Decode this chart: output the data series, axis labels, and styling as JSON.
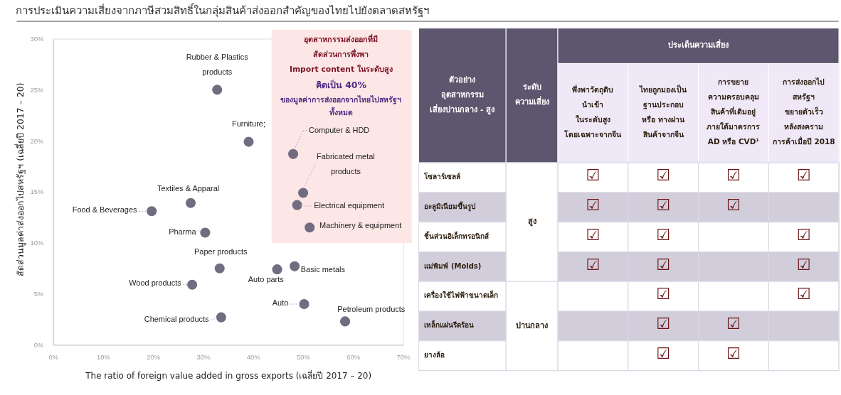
{
  "chart_data": [
    {
      "type": "scatter",
      "title": "การประเมินความเสี่ยงจากภาษีสวมสิทธิ์ในกลุ่มสินค้าส่งออกสำคัญของไทยไปยังตลาดสหรัฐฯ",
      "xlabel": "The ratio of foreign value added in gross exports (เฉลี่ยปี 2017 – 20)",
      "ylabel": "สัดส่วนมูลค่าส่งออกไปสหรัฐฯ (เฉลี่ยปี 2017 – 20)",
      "marker": "circle",
      "xlim": [
        0,
        70
      ],
      "ylim": [
        0,
        30
      ],
      "xticks": [
        {
          "value": 0,
          "label": "0%"
        },
        {
          "value": 10,
          "label": "10%"
        },
        {
          "value": 20,
          "label": "20%"
        },
        {
          "value": 30,
          "label": "30%"
        },
        {
          "value": 40,
          "label": "40%"
        },
        {
          "value": 50,
          "label": "50%"
        },
        {
          "value": 60,
          "label": "60%"
        },
        {
          "value": 70,
          "label": "70%"
        }
      ],
      "yticks": [
        {
          "value": 0,
          "label": "0%"
        },
        {
          "value": 5,
          "label": "5%"
        },
        {
          "value": 10,
          "label": "10%"
        },
        {
          "value": 15,
          "label": "15%"
        },
        {
          "value": 20,
          "label": "20%"
        },
        {
          "value": 25,
          "label": "25%"
        },
        {
          "value": 30,
          "label": "30%"
        }
      ],
      "series": [
        {
          "name": "Rubber & Plastics\nproducts",
          "color": "#716c80",
          "x": [
            32.8
          ],
          "values": [
            25.0
          ]
        },
        {
          "name": "Furniture;",
          "color": "#716c80",
          "x": [
            39.1
          ],
          "values": [
            19.9
          ]
        },
        {
          "name": "Computer & HDD",
          "color": "#716c80",
          "x": [
            48.0
          ],
          "values": [
            18.7
          ]
        },
        {
          "name": "Fabricated metal\nproducts",
          "color": "#716c80",
          "x": [
            50.0
          ],
          "values": [
            14.9
          ]
        },
        {
          "name": "Electrical equipment",
          "color": "#716c80",
          "x": [
            48.8
          ],
          "values": [
            13.7
          ]
        },
        {
          "name": "Machinery & equipment",
          "color": "#716c80",
          "x": [
            51.3
          ],
          "values": [
            11.5
          ]
        },
        {
          "name": "Textiles & Apparal",
          "color": "#716c80",
          "x": [
            27.5
          ],
          "values": [
            13.9
          ]
        },
        {
          "name": "Food & Beverages",
          "color": "#716c80",
          "x": [
            19.7
          ],
          "values": [
            13.1
          ]
        },
        {
          "name": "Pharma",
          "color": "#716c80",
          "x": [
            30.4
          ],
          "values": [
            11.0
          ]
        },
        {
          "name": "Paper products",
          "color": "#716c80",
          "x": [
            33.3
          ],
          "values": [
            7.5
          ]
        },
        {
          "name": "Auto parts",
          "color": "#716c80",
          "x": [
            44.8
          ],
          "values": [
            7.4
          ]
        },
        {
          "name": "Basic metals",
          "color": "#716c80",
          "x": [
            48.3
          ],
          "values": [
            7.7
          ]
        },
        {
          "name": "Wood products",
          "color": "#716c80",
          "x": [
            27.8
          ],
          "values": [
            5.9
          ]
        },
        {
          "name": "Auto",
          "color": "#716c80",
          "x": [
            50.2
          ],
          "values": [
            4.0
          ]
        },
        {
          "name": "Chemical products",
          "color": "#716c80",
          "x": [
            33.6
          ],
          "values": [
            2.7
          ]
        },
        {
          "name": "Petroleum products",
          "color": "#716c80",
          "x": [
            58.4
          ],
          "values": [
            2.3
          ]
        }
      ],
      "annotations": [
        "อุตสาหกรรมส่งออกที่มี\nสัดส่วนการพึ่งพา\nImport content ในระดับสูง",
        "คิดเป็น 40%",
        "ของมูลค่าการส่งออกจากไทยไปสหรัฐฯ\nทั้งหมด"
      ]
    },
    {
      "type": "other",
      "xlabel": "ประเด็นความเสี่ยง",
      "ylabel": "ตัวอย่าง\nอุตสาหกรรม\nเสี่ยงปานกลาง - สูง",
      "y2label": "ระดับ\nความเสี่ยง",
      "categories": [
        "พึ่งพาวัตถุดิบ\nนำเข้า\nในระดับสูง\nโดยเฉพาะจากจีน",
        "ไทยถูกมองเป็น\nฐานประกอบ\nหรือ ทางผ่าน\nสินค้าจากจีน",
        "การขยาย\nความครอบคลุม\nสินค้าที่เดิมอยู่\nภายใต้มาตรการ\nAD หรือ CVD¹",
        "การส่งออกไป\nสหรัฐฯ\nขยายตัวเร็ว\nหลังสงคราม\nการค้าเมื่อปี 2018"
      ],
      "y_categories": [
        "โซลาร์เซลล์",
        "อะลูมิเนียมขึ้นรูป",
        "ชิ้นส่วนอิเล็กทรอนิกส์",
        "แม่พิมพ์ (Molds)",
        "เครื่องใช้ไฟฟ้าขนาดเล็ก",
        "เหล็กแผ่นรีดร้อน",
        "ยางล้อ"
      ],
      "cell_labels": [
        [
          "☑",
          "☑",
          "☑",
          "☑"
        ],
        [
          "☑",
          "☑",
          "☑",
          null
        ],
        [
          "☑",
          "☑",
          null,
          "☑"
        ],
        [
          "☑",
          "☑",
          null,
          "☑"
        ],
        [
          null,
          "☑",
          null,
          "☑"
        ],
        [
          null,
          "☑",
          "☑",
          null
        ],
        [
          null,
          "☑",
          "☑",
          null
        ]
      ],
      "annotations": [
        "สูง",
        "ปานกลาง"
      ]
    }
  ]
}
